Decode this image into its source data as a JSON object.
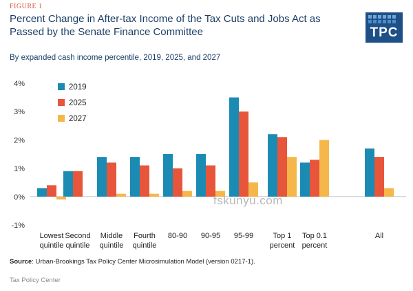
{
  "header": {
    "figure_label": "FIGURE 1",
    "title": "Percent Change in After-tax Income of the Tax Cuts and Jobs Act as Passed by the Senate Finance Committee",
    "subtitle": "By expanded cash income percentile, 2019, 2025, and 2027",
    "logo_text": "TPC"
  },
  "chart_data": {
    "type": "bar",
    "title": "Percent Change in After-tax Income of the Tax Cuts and Jobs Act as Passed by the Senate Finance Committee",
    "categories": [
      [
        "Lowest",
        "quintile"
      ],
      [
        "Second",
        "quintile"
      ],
      [
        "Middle",
        "quintile"
      ],
      [
        "Fourth",
        "quintile"
      ],
      [
        "80-90"
      ],
      [
        "90-95"
      ],
      [
        "95-99"
      ],
      [
        "Top 1",
        "percent"
      ],
      [
        "Top 0.1",
        "percent"
      ],
      [
        "All"
      ]
    ],
    "series": [
      {
        "name": "2019",
        "color": "#1b8bb4",
        "values": [
          0.3,
          0.9,
          1.4,
          1.4,
          1.5,
          1.5,
          3.5,
          2.2,
          1.2,
          1.7
        ]
      },
      {
        "name": "2025",
        "color": "#e7553b",
        "values": [
          0.4,
          0.9,
          1.2,
          1.1,
          1.0,
          1.1,
          3.0,
          2.1,
          1.3,
          1.4
        ]
      },
      {
        "name": "2027",
        "color": "#f6b74a",
        "values": [
          -0.1,
          0.0,
          0.1,
          0.1,
          0.2,
          0.2,
          0.5,
          1.4,
          2.0,
          0.3
        ]
      }
    ],
    "ylim": [
      -1,
      4
    ],
    "yticks": [
      -1,
      0,
      1,
      2,
      3,
      4
    ],
    "ytick_labels": [
      "-1%",
      "0%",
      "1%",
      "2%",
      "3%",
      "4%"
    ],
    "xlabel": "",
    "ylabel": "",
    "legend_position": "top-left",
    "grid": false
  },
  "source": {
    "label": "Source",
    "text": ": Urban-Brookings Tax Policy Center Microsimulation Model (version 0217-1)."
  },
  "footer": "Tax Policy Center",
  "watermark": "fskunyu.com"
}
